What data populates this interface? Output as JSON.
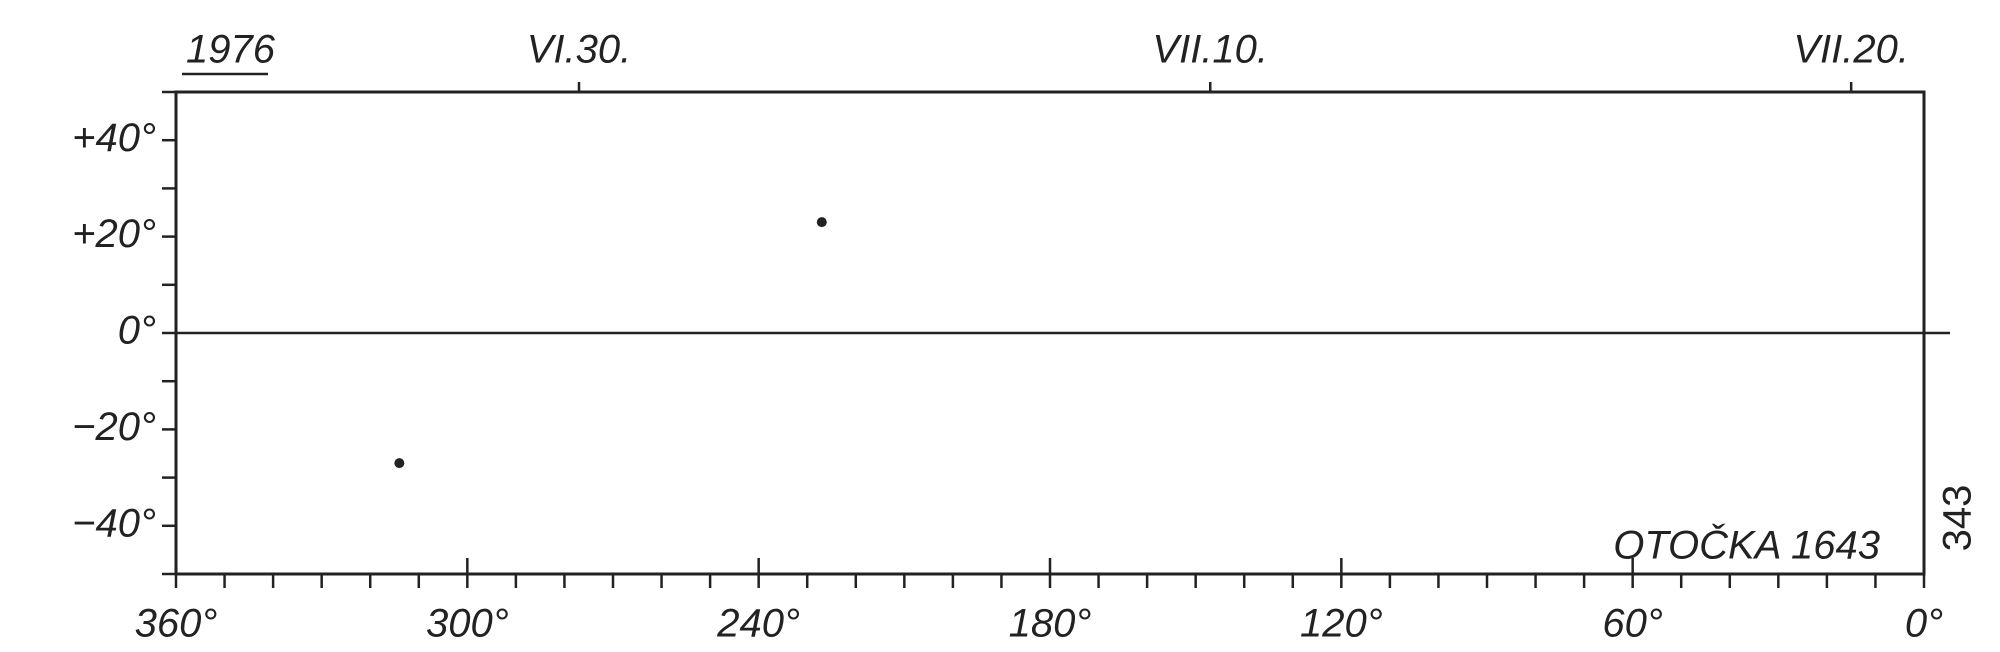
{
  "chart_data": {
    "type": "scatter",
    "year_label": "1976",
    "annotation": "OTOČKA 1643",
    "page_number": "343",
    "x": [
      314,
      227
    ],
    "values": [
      -27,
      23
    ],
    "color": "#222222",
    "xlim": [
      360,
      0
    ],
    "ylim": [
      -50,
      50
    ],
    "xticks": [
      {
        "value": 360,
        "label": "360°"
      },
      {
        "value": 300,
        "label": "300°"
      },
      {
        "value": 240,
        "label": "240°"
      },
      {
        "value": 180,
        "label": "180°"
      },
      {
        "value": 120,
        "label": "120°"
      },
      {
        "value": 60,
        "label": "60°"
      },
      {
        "value": 0,
        "label": "0°"
      }
    ],
    "xticks_minor": [
      350,
      340,
      330,
      320,
      310,
      290,
      280,
      270,
      260,
      250,
      230,
      220,
      210,
      200,
      190,
      170,
      160,
      150,
      140,
      130,
      110,
      100,
      90,
      80,
      70,
      50,
      40,
      30,
      20,
      10
    ],
    "yticks": [
      {
        "value": 40,
        "label": "+40°"
      },
      {
        "value": 20,
        "label": "+20°"
      },
      {
        "value": 0,
        "label": "0°"
      },
      {
        "value": -20,
        "label": "−20°"
      },
      {
        "value": -40,
        "label": "−40°"
      }
    ],
    "yticks_minor": [
      50,
      30,
      10,
      -10,
      -30,
      -50
    ],
    "x2ticks": [
      {
        "value": 277,
        "label": "VI.30."
      },
      {
        "value": 147,
        "label": "VII.10."
      },
      {
        "value": 15,
        "label": "VII.20."
      }
    ],
    "zero_line": true
  }
}
